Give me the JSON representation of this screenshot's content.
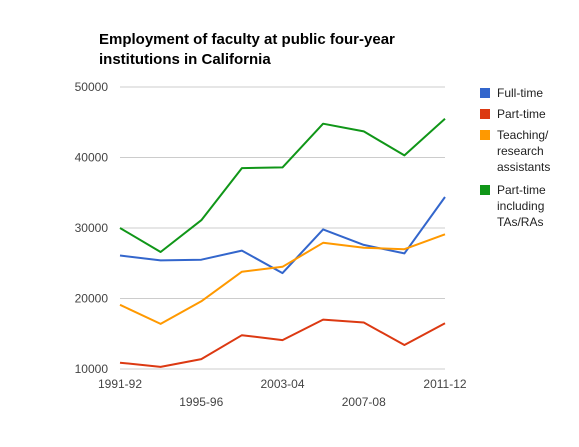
{
  "chart_data": {
    "type": "line",
    "title": [
      "Employment of faculty at public four-year",
      "institutions in California"
    ],
    "xlabel": "",
    "ylabel": "",
    "ylim": [
      10000,
      50000
    ],
    "yticks": [
      "50000",
      "40000",
      "30000",
      "20000",
      "10000"
    ],
    "grid": true,
    "legend_position": "right",
    "x_labels_row1": [
      {
        "index": 0,
        "label": "1991-92"
      },
      {
        "index": 4,
        "label": "2003-04"
      },
      {
        "index": 8,
        "label": "2011-12"
      }
    ],
    "x_labels_row2": [
      {
        "index": 2,
        "label": "1995-96"
      },
      {
        "index": 6,
        "label": "2007-08"
      }
    ],
    "series": [
      {
        "name": "Full-time",
        "color": "#3366cc",
        "values": [
          26100,
          25400,
          25500,
          26800,
          23600,
          29800,
          27600,
          26400,
          34400
        ]
      },
      {
        "name": "Part-time",
        "color": "#dc3912",
        "values": [
          10900,
          10300,
          11400,
          14800,
          14100,
          17000,
          16600,
          13400,
          16500
        ]
      },
      {
        "name": [
          "Teaching/",
          "research",
          "assistants"
        ],
        "color": "#ff9900",
        "values": [
          19100,
          16400,
          19600,
          23800,
          24500,
          27900,
          27200,
          27000,
          29100
        ]
      },
      {
        "name": [
          "Part-time",
          "including",
          "TAs/RAs"
        ],
        "color": "#109618",
        "values": [
          30000,
          26600,
          31100,
          38500,
          38600,
          44800,
          43700,
          40300,
          45500
        ]
      }
    ]
  }
}
